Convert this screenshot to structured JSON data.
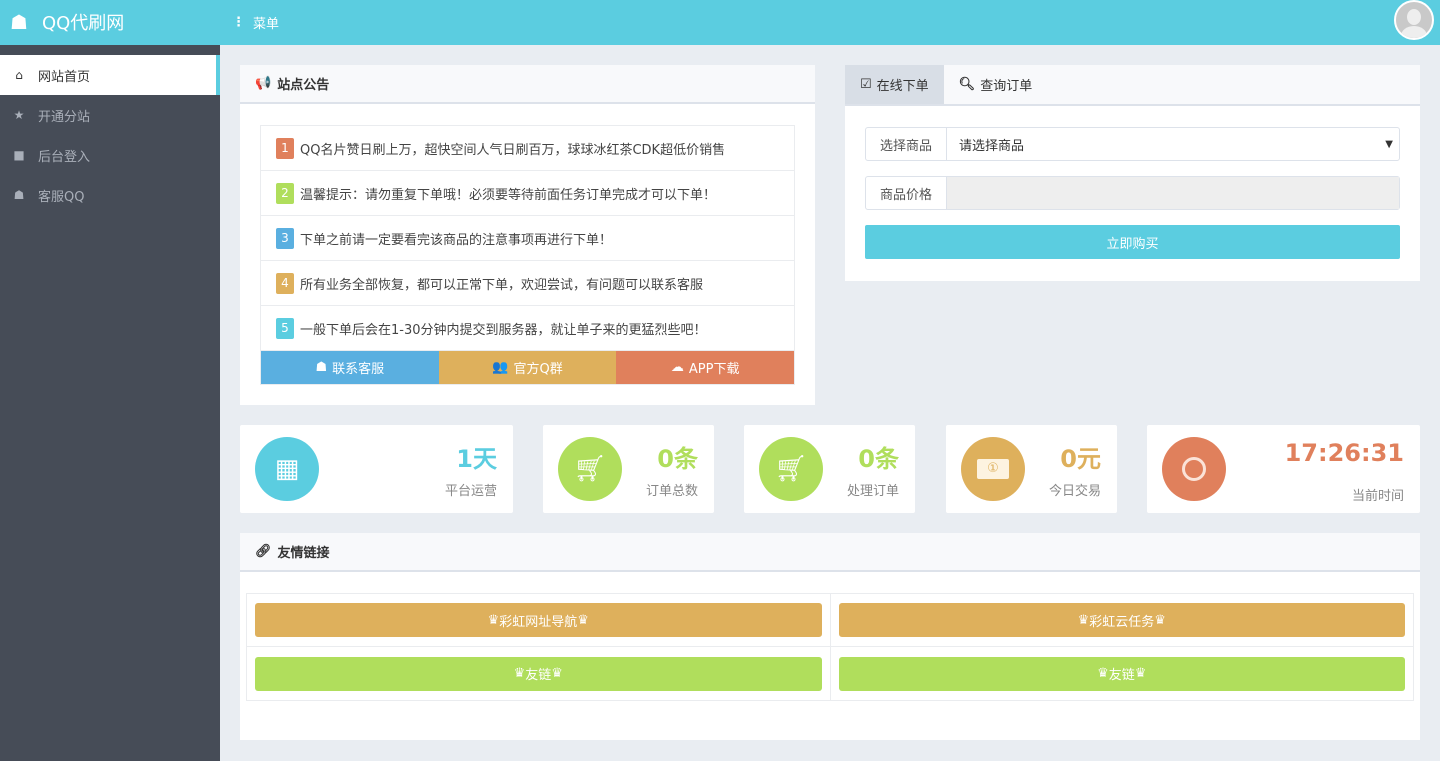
{
  "header": {
    "site_name": "QQ代刷网",
    "menu_label": "菜单"
  },
  "sidebar": {
    "items": [
      {
        "label": "网站首页",
        "icon": "home-icon"
      },
      {
        "label": "开通分站",
        "icon": "star-icon"
      },
      {
        "label": "后台登入",
        "icon": "lock-icon"
      },
      {
        "label": "客服QQ",
        "icon": "qq-icon"
      }
    ]
  },
  "notice": {
    "title": "站点公告",
    "items": [
      {
        "n": "1",
        "text": "QQ名片赞日刷上万，超快空间人气日刷百万，球球冰红茶CDK超低价销售",
        "color": "#e0805c"
      },
      {
        "n": "2",
        "text": "温馨提示：请勿重复下单哦！必须要等待前面任务订单完成才可以下单！",
        "color": "#b0de5c"
      },
      {
        "n": "3",
        "text": "下单之前请一定要看完该商品的注意事项再进行下单！",
        "color": "#5aafe0"
      },
      {
        "n": "4",
        "text": "所有业务全部恢复，都可以正常下单，欢迎尝试，有问题可以联系客服",
        "color": "#deb05c"
      },
      {
        "n": "5",
        "text": "一般下单后会在1-30分钟内提交到服务器，就让单子来的更猛烈些吧！",
        "color": "#5bcde0"
      }
    ],
    "buttons": [
      {
        "label": "联系客服",
        "color": "#5aafe0"
      },
      {
        "label": "官方Q群",
        "color": "#deb05c"
      },
      {
        "label": "APP下载",
        "color": "#e0805c"
      }
    ]
  },
  "order": {
    "tabs": [
      "在线下单",
      "查询订单"
    ],
    "product_label": "选择商品",
    "product_value": "请选择商品",
    "price_label": "商品价格",
    "price_value": "",
    "buy_label": "立即购买"
  },
  "stats": [
    {
      "value": "1天",
      "label": "平台运营",
      "color": "#5bcde0",
      "icon": "calendar-icon"
    },
    {
      "value": "0条",
      "label": "订单总数",
      "color": "#b0de5c",
      "icon": "cart-icon"
    },
    {
      "value": "0条",
      "label": "处理订单",
      "color": "#b0de5c",
      "icon": "cart-icon"
    },
    {
      "value": "0元",
      "label": "今日交易",
      "color": "#deb05c",
      "icon": "money-icon"
    },
    {
      "value": "17:26:31",
      "label": "当前时间",
      "color": "#e0805c",
      "icon": "clock-icon"
    }
  ],
  "links": {
    "title": "友情链接",
    "items": [
      {
        "label": "彩虹网址导航",
        "color": "#deb05c"
      },
      {
        "label": "彩虹云任务",
        "color": "#deb05c"
      },
      {
        "label": "友链",
        "color": "#b0de5c"
      },
      {
        "label": "友链",
        "color": "#b0de5c"
      }
    ]
  }
}
